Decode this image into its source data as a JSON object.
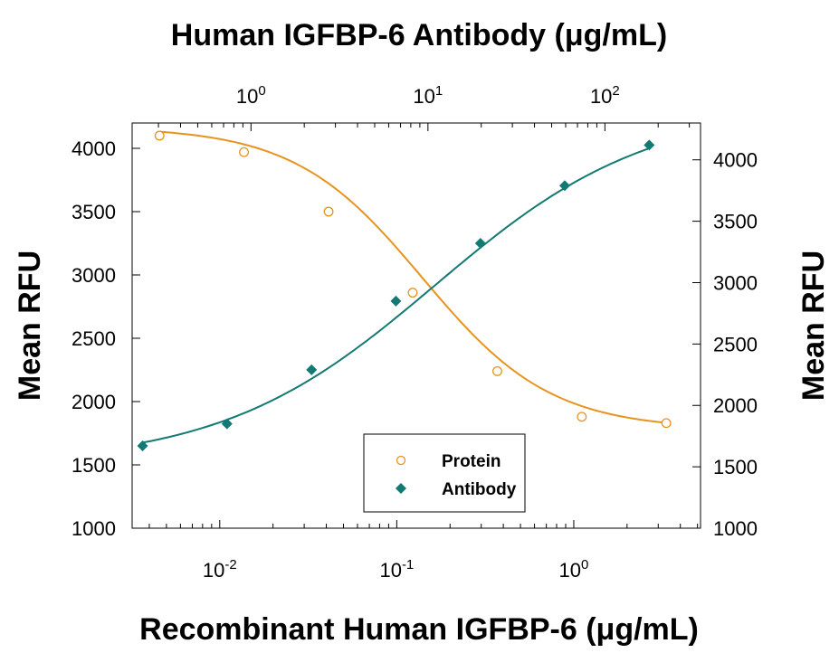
{
  "chart_data": {
    "type": "scatter",
    "top_axis_title": "Human IGFBP-6 Antibody (μg/mL)",
    "bottom_axis_title": "Recombinant Human IGFBP-6 (μg/mL)",
    "left_axis_title": "Mean RFU",
    "right_axis_title": "Mean RFU",
    "bottom_axis": {
      "scale": "log",
      "range": [
        0.0032,
        5.2
      ],
      "ticks": [
        {
          "value": 0.01,
          "base": "10",
          "exp": "-2"
        },
        {
          "value": 0.1,
          "base": "10",
          "exp": "-1"
        },
        {
          "value": 1,
          "base": "10",
          "exp": "0"
        }
      ]
    },
    "top_axis": {
      "scale": "log",
      "range": [
        0.213,
        347
      ],
      "ticks": [
        {
          "value": 1,
          "base": "10",
          "exp": "0"
        },
        {
          "value": 10,
          "base": "10",
          "exp": "1"
        },
        {
          "value": 100,
          "base": "10",
          "exp": "2"
        }
      ]
    },
    "left_axis": {
      "range": [
        1000,
        4200
      ],
      "ticks": [
        "1000",
        "1500",
        "2000",
        "2500",
        "3000",
        "3500",
        "4000"
      ]
    },
    "right_axis": {
      "range": [
        1000,
        4300
      ],
      "ticks": [
        "1000",
        "1500",
        "2000",
        "2500",
        "3000",
        "3500",
        "4000"
      ]
    },
    "grid": false,
    "legend_position": "bottom-center",
    "series": [
      {
        "name": "Protein",
        "marker": "open-circle",
        "color": "#E8931E",
        "axes": "bottom-left",
        "x": [
          0.00457,
          0.0137,
          0.0412,
          0.123,
          0.37,
          1.11,
          3.33
        ],
        "y": [
          4100,
          3970,
          3500,
          2860,
          2240,
          1880,
          1830
        ],
        "curve": {
          "top": 4170,
          "bottom": 1780,
          "ec50": 0.14,
          "hill": 1.2
        }
      },
      {
        "name": "Antibody",
        "marker": "filled-diamond",
        "color": "#137A73",
        "axes": "top-right",
        "x": [
          0.244,
          0.732,
          2.2,
          6.59,
          19.8,
          59.3,
          178
        ],
        "y": [
          1670,
          1850,
          2290,
          2850,
          3320,
          3790,
          4120
        ],
        "curve": {
          "top": 4440,
          "bottom": 1520,
          "ec50": 11.0,
          "hill": 0.72
        }
      }
    ]
  }
}
